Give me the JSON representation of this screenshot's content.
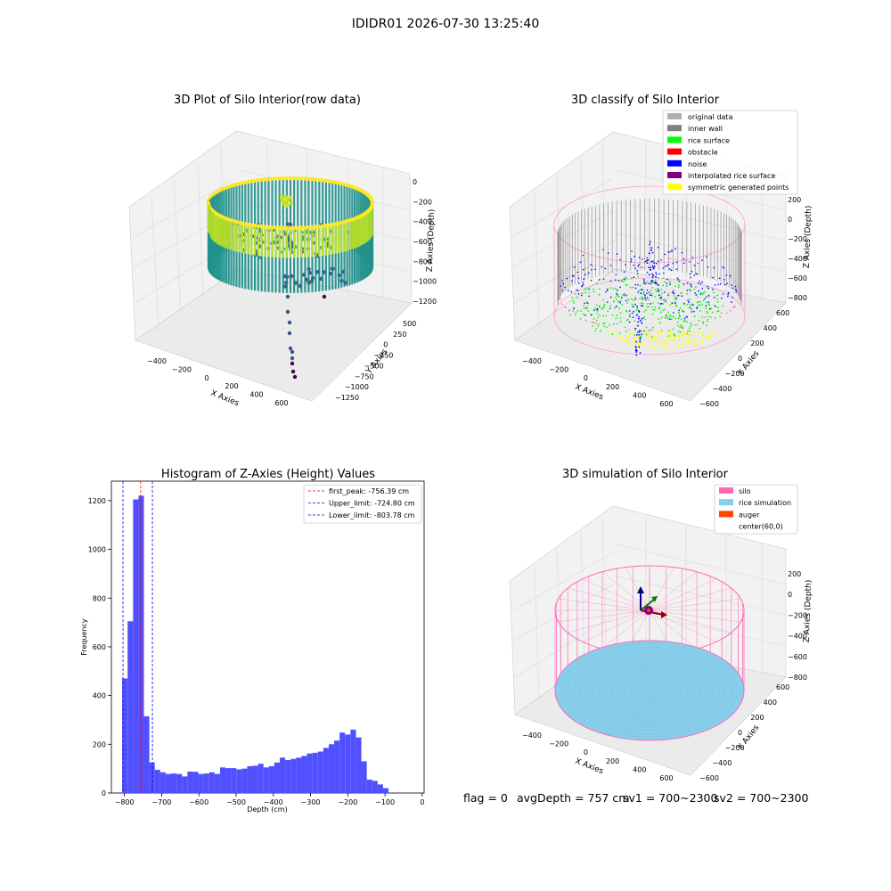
{
  "figure": {
    "suptitle": "IDIDR01 2026-07-30 13:25:40",
    "footer": {
      "flag": "flag = 0",
      "avg_depth": "avgDepth = 757 cm",
      "sv1": "sv1 = 700~2300",
      "sv2": "sv2 = 700~2300"
    }
  },
  "chart_data": [
    {
      "type": "scatter3d",
      "title": "3D Plot of Silo Interior(row data)",
      "xlabel": "X Axies",
      "ylabel": "Y Axies",
      "zlabel": "Z Axies (Depth)",
      "x_ticks": [
        "−400",
        "−200",
        "0",
        "200",
        "400",
        "600"
      ],
      "y_ticks": [
        "500",
        "250",
        "0",
        "−250",
        "−500",
        "−750",
        "−1000",
        "−1250"
      ],
      "z_ticks": [
        "0",
        "−200",
        "−400",
        "−600",
        "−800",
        "−1000",
        "−1200"
      ],
      "colormap": "viridis",
      "colors": {
        "high": "#fde725",
        "mid": "#21918c",
        "low": "#440154"
      }
    },
    {
      "type": "scatter3d",
      "title": "3D classify of Silo Interior",
      "xlabel": "X Axies",
      "ylabel": "Y Axies",
      "zlabel": "Z Axies (Depth)",
      "x_ticks": [
        "−400",
        "−200",
        "0",
        "200",
        "400",
        "600"
      ],
      "y_ticks": [
        "600",
        "400",
        "200",
        "0",
        "−200",
        "−400",
        "−600"
      ],
      "z_ticks": [
        "200",
        "0",
        "−200",
        "−400",
        "−600",
        "−800"
      ],
      "legend": [
        {
          "label": "original data",
          "color": "#b0b0b0"
        },
        {
          "label": "inner wall",
          "color": "#808080"
        },
        {
          "label": "rice surface",
          "color": "#00ff00"
        },
        {
          "label": "obstacle",
          "color": "#ff0000"
        },
        {
          "label": "noise",
          "color": "#0000ff"
        },
        {
          "label": "interpolated rice surface",
          "color": "#800080"
        },
        {
          "label": "symmetric generated points",
          "color": "#ffff00"
        }
      ],
      "legend_position": "top-right"
    },
    {
      "type": "bar",
      "title": "Histogram of Z-Axies (Height) Values",
      "xlabel": "Depth (cm)",
      "ylabel": "Frequency",
      "xlim": [
        -835,
        5
      ],
      "ylim": [
        0,
        1280
      ],
      "x_ticks": [
        -800,
        -700,
        -600,
        -500,
        -400,
        -300,
        -200,
        -100,
        0
      ],
      "x_tick_labels": [
        "−800",
        "−700",
        "−600",
        "−500",
        "−400",
        "−300",
        "−200",
        "−100",
        "0"
      ],
      "y_ticks": [
        0,
        200,
        400,
        600,
        800,
        1000,
        1200
      ],
      "bar_color": "#5050ff",
      "bin_start": -806,
      "bin_width": 14.6,
      "values": [
        470,
        705,
        1205,
        1220,
        315,
        125,
        95,
        85,
        78,
        80,
        78,
        68,
        88,
        87,
        78,
        80,
        85,
        78,
        105,
        102,
        102,
        97,
        100,
        110,
        112,
        120,
        105,
        110,
        125,
        145,
        135,
        140,
        145,
        152,
        162,
        165,
        170,
        185,
        200,
        215,
        248,
        240,
        260,
        228,
        130,
        55,
        50,
        35,
        20
      ],
      "lines": [
        {
          "label": "first_peak: -756.39 cm",
          "value": -756.39,
          "color": "#ff0000"
        },
        {
          "label": "Upper_limit: -724.80 cm",
          "value": -724.8,
          "color": "#0000ff"
        },
        {
          "label": "Lower_limit: -803.78 cm",
          "value": -803.78,
          "color": "#0000ff"
        }
      ],
      "legend_position": "top-right"
    },
    {
      "type": "surface3d",
      "title": "3D simulation of Silo Interior",
      "xlabel": "X Axies",
      "ylabel": "Y Axies",
      "zlabel": "Z Axies (Depth)",
      "x_ticks": [
        "−400",
        "−200",
        "0",
        "200",
        "400",
        "600"
      ],
      "y_ticks": [
        "600",
        "400",
        "200",
        "0",
        "−200",
        "−400",
        "−600"
      ],
      "z_ticks": [
        "200",
        "0",
        "−200",
        "−400",
        "−600",
        "−800"
      ],
      "legend": [
        {
          "label": "silo",
          "color": "#ff69b4"
        },
        {
          "label": "rice simulation",
          "color": "#87ceeb"
        },
        {
          "label": "auger",
          "color": "#ff4500"
        },
        {
          "label": "center(60,0)",
          "color": ""
        }
      ],
      "legend_position": "top-right"
    }
  ]
}
